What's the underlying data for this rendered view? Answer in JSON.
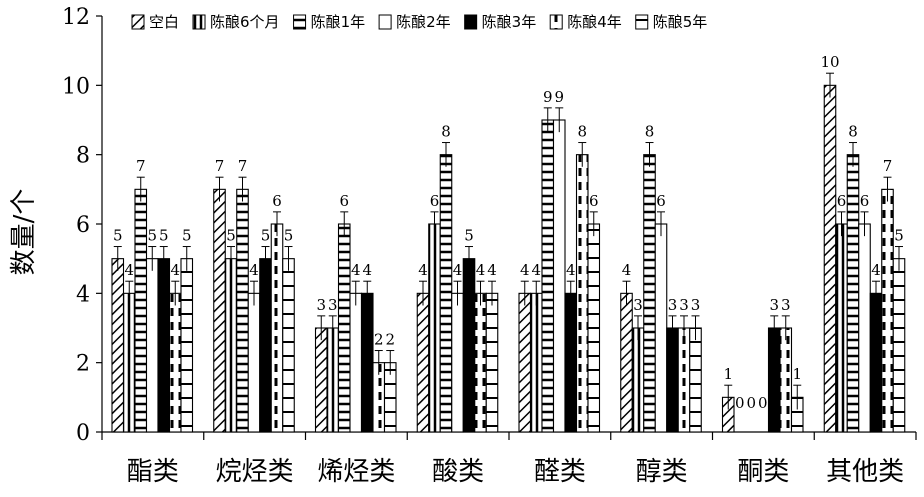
{
  "chart_data": {
    "type": "bar",
    "title": "",
    "xlabel": "",
    "ylabel": "数量/个",
    "ylim": [
      0,
      12
    ],
    "yticks": [
      0,
      2,
      4,
      6,
      8,
      10,
      12
    ],
    "grid": false,
    "legend_position": "top",
    "categories": [
      "酯类",
      "烷烃类",
      "烯烃类",
      "酸类",
      "醛类",
      "醇类",
      "酮类",
      "其他类"
    ],
    "series": [
      {
        "name": "空白",
        "pattern": "diag",
        "values": [
          5,
          7,
          3,
          4,
          4,
          4,
          1,
          10
        ]
      },
      {
        "name": "陈酿6个月",
        "pattern": "vert",
        "values": [
          4,
          5,
          3,
          6,
          4,
          3,
          0,
          6
        ]
      },
      {
        "name": "陈酿1年",
        "pattern": "horiz",
        "values": [
          7,
          7,
          6,
          8,
          9,
          8,
          0,
          8
        ]
      },
      {
        "name": "陈酿2年",
        "pattern": "open",
        "values": [
          5,
          4,
          4,
          4,
          9,
          6,
          0,
          6
        ]
      },
      {
        "name": "陈酿3年",
        "pattern": "solid",
        "values": [
          5,
          5,
          4,
          5,
          4,
          3,
          3,
          4
        ]
      },
      {
        "name": "陈酿4年",
        "pattern": "dash",
        "values": [
          4,
          6,
          2,
          4,
          8,
          3,
          3,
          7
        ]
      },
      {
        "name": "陈酿5年",
        "pattern": "hstripe",
        "values": [
          5,
          5,
          2,
          4,
          6,
          3,
          1,
          5
        ]
      }
    ]
  }
}
